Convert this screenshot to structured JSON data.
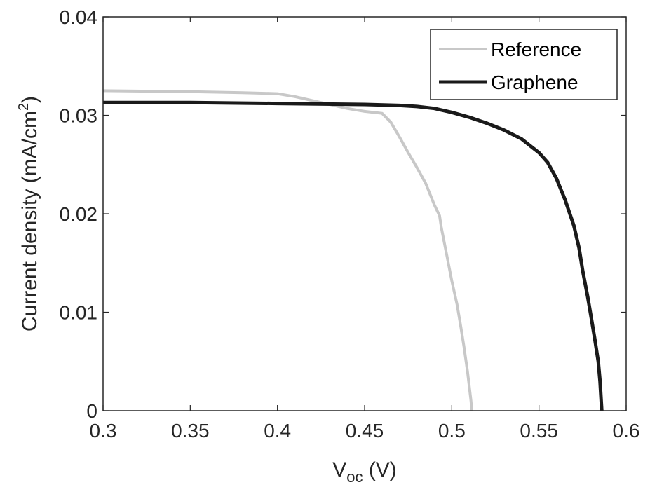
{
  "chart_data": {
    "type": "line",
    "xlabel_main": "V",
    "xlabel_sub": "oc",
    "xlabel_unit": " (V)",
    "ylabel_main": "Current density (mA/cm",
    "ylabel_sup": "2",
    "ylabel_close": ")",
    "xlim": [
      0.3,
      0.6
    ],
    "ylim": [
      0,
      0.04
    ],
    "xticks": [
      0.3,
      0.35,
      0.4,
      0.45,
      0.5,
      0.55,
      0.6
    ],
    "xtick_labels": [
      "0.3",
      "0.35",
      "0.4",
      "0.45",
      "0.5",
      "0.55",
      "0.6"
    ],
    "yticks": [
      0,
      0.01,
      0.02,
      0.03,
      0.04
    ],
    "ytick_labels": [
      "0",
      "0.01",
      "0.02",
      "0.03",
      "0.04"
    ],
    "grid": false,
    "legend_position": "top-right",
    "series": [
      {
        "name": "Reference",
        "color": "#c8c8c8",
        "x": [
          0.3,
          0.35,
          0.38,
          0.4,
          0.41,
          0.42,
          0.43,
          0.44,
          0.45,
          0.46,
          0.465,
          0.47,
          0.475,
          0.48,
          0.485,
          0.49,
          0.493,
          0.494,
          0.497,
          0.5,
          0.503,
          0.505,
          0.507,
          0.509,
          0.51,
          0.511,
          0.5115
        ],
        "y": [
          0.0325,
          0.0324,
          0.0323,
          0.0322,
          0.0319,
          0.0315,
          0.0311,
          0.0307,
          0.0304,
          0.0302,
          0.0293,
          0.0278,
          0.0262,
          0.0247,
          0.0231,
          0.0209,
          0.0198,
          0.0186,
          0.0159,
          0.0132,
          0.0108,
          0.0087,
          0.0065,
          0.004,
          0.0025,
          0.001,
          0.0
        ]
      },
      {
        "name": "Graphene",
        "color": "#1a1a1a",
        "x": [
          0.3,
          0.35,
          0.4,
          0.45,
          0.47,
          0.48,
          0.49,
          0.5,
          0.51,
          0.52,
          0.53,
          0.54,
          0.55,
          0.555,
          0.56,
          0.565,
          0.57,
          0.573,
          0.575,
          0.578,
          0.58,
          0.582,
          0.584,
          0.585,
          0.586
        ],
        "y": [
          0.0313,
          0.0313,
          0.0312,
          0.0311,
          0.031,
          0.0309,
          0.0307,
          0.0303,
          0.0298,
          0.0292,
          0.0285,
          0.0276,
          0.0262,
          0.0252,
          0.0236,
          0.0214,
          0.0188,
          0.0165,
          0.0143,
          0.0115,
          0.0094,
          0.0073,
          0.005,
          0.003,
          0.0
        ]
      }
    ]
  }
}
